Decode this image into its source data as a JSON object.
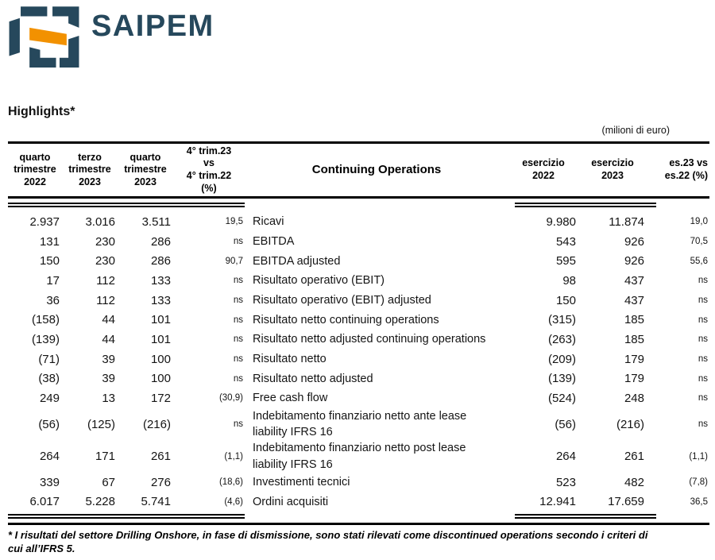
{
  "brand": {
    "name": "SAIPEM"
  },
  "colors": {
    "brand_dark": "#26485c",
    "brand_orange": "#f29100",
    "text": "#141414",
    "rule": "#000000"
  },
  "page": {
    "title": "Highlights*",
    "unit_note": "(milioni di euro)",
    "footnote": "* I risultati del settore Drilling Onshore, in fase di dismissione, sono stati rilevati come discontinued operations secondo i criteri di\ncui all’IFRS 5."
  },
  "table": {
    "headers": {
      "q4_2022": "quarto\ntrimestre\n2022",
      "q3_2023": "terzo\ntrimestre\n2023",
      "q4_2023": "quarto\ntrimestre\n2023",
      "q_var": "4° trim.23\nvs\n4° trim.22\n(%)",
      "section": "Continuing Operations",
      "fy_2022": "esercizio\n2022",
      "fy_2023": "esercizio\n2023",
      "fy_var": "es.23 vs\nes.22 (%)"
    },
    "rows": [
      {
        "a": "2.937",
        "b": "3.016",
        "c": "3.511",
        "v1": "19,5",
        "label": "Ricavi",
        "d": "9.980",
        "e": "11.874",
        "v2": "19,0",
        "tall": false
      },
      {
        "a": "131",
        "b": "230",
        "c": "286",
        "v1": "ns",
        "label": "EBITDA",
        "d": "543",
        "e": "926",
        "v2": "70,5",
        "tall": false
      },
      {
        "a": "150",
        "b": "230",
        "c": "286",
        "v1": "90,7",
        "label": "EBITDA adjusted",
        "d": "595",
        "e": "926",
        "v2": "55,6",
        "tall": false
      },
      {
        "a": "17",
        "b": "112",
        "c": "133",
        "v1": "ns",
        "label": "Risultato operativo (EBIT)",
        "d": "98",
        "e": "437",
        "v2": "ns",
        "tall": false
      },
      {
        "a": "36",
        "b": "112",
        "c": "133",
        "v1": "ns",
        "label": "Risultato operativo (EBIT) adjusted",
        "d": "150",
        "e": "437",
        "v2": "ns",
        "tall": false
      },
      {
        "a": "(158)",
        "b": "44",
        "c": "101",
        "v1": "ns",
        "label": "Risultato netto continuing operations",
        "d": "(315)",
        "e": "185",
        "v2": "ns",
        "tall": false
      },
      {
        "a": "(139)",
        "b": "44",
        "c": "101",
        "v1": "ns",
        "label": "Risultato netto adjusted continuing operations",
        "d": "(263)",
        "e": "185",
        "v2": "ns",
        "tall": false
      },
      {
        "a": "(71)",
        "b": "39",
        "c": "100",
        "v1": "ns",
        "label": "Risultato netto",
        "d": "(209)",
        "e": "179",
        "v2": "ns",
        "tall": false
      },
      {
        "a": "(38)",
        "b": "39",
        "c": "100",
        "v1": "ns",
        "label": "Risultato netto adjusted",
        "d": "(139)",
        "e": "179",
        "v2": "ns",
        "tall": false
      },
      {
        "a": "249",
        "b": "13",
        "c": "172",
        "v1": "(30,9)",
        "label": "Free cash flow",
        "d": "(524)",
        "e": "248",
        "v2": "ns",
        "tall": false
      },
      {
        "a": "(56)",
        "b": "(125)",
        "c": "(216)",
        "v1": "ns",
        "label": "Indebitamento finanziario netto ante lease\nliability IFRS 16",
        "d": "(56)",
        "e": "(216)",
        "v2": "ns",
        "tall": true
      },
      {
        "a": "264",
        "b": "171",
        "c": "261",
        "v1": "(1,1)",
        "label": "Indebitamento finanziario netto post lease\nliability IFRS 16",
        "d": "264",
        "e": "261",
        "v2": "(1,1)",
        "tall": true
      },
      {
        "a": "339",
        "b": "67",
        "c": "276",
        "v1": "(18,6)",
        "label": "Investimenti tecnici",
        "d": "523",
        "e": "482",
        "v2": "(7,8)",
        "tall": false
      },
      {
        "a": "6.017",
        "b": "5.228",
        "c": "5.741",
        "v1": "(4,6)",
        "label": "Ordini acquisiti",
        "d": "12.941",
        "e": "17.659",
        "v2": "36,5",
        "tall": false
      }
    ]
  }
}
